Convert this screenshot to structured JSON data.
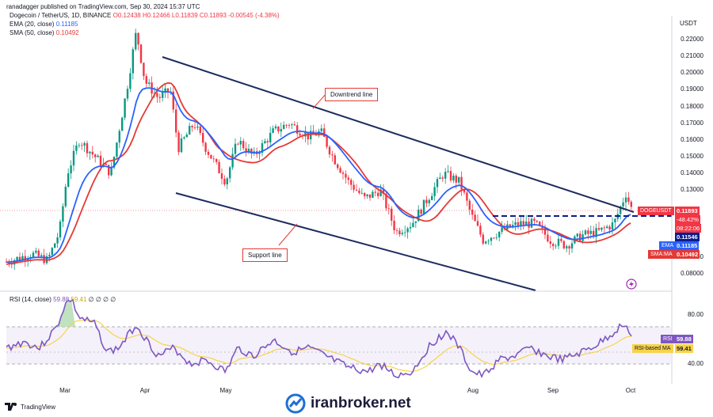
{
  "header": {
    "line1_prefix": "ranadagger published on TradingView.com, Sep 30, 2024 15:37 UTC",
    "symbol": "Dogecoin / TetherUS, 1D, BINANCE",
    "ohlc": "O0.12438 H0.12466 L0.11839 C0.11893 -0.00545 (-4.38%)",
    "ema_label": "EMA (20, close)",
    "ema_value": "0.11185",
    "sma_label": "SMA (50, close)",
    "sma_value": "0.10492"
  },
  "currency": "USDT",
  "price_ticks": [
    "0.22000",
    "0.21000",
    "0.20000",
    "0.19000",
    "0.18000",
    "0.17000",
    "0.16000",
    "0.15000",
    "0.14000",
    "0.13000",
    "0.09000",
    "0.08000"
  ],
  "tags": {
    "symbol_tag": "DOGEUSDT",
    "last_price": "0.11893",
    "change": "-48.42%",
    "countdown": "08:22:06",
    "line_price": "0.11546",
    "ema_tag": "EMA",
    "ema_value": "0.11185",
    "sma_tag": "SMA:MA",
    "sma_value": "0.10492"
  },
  "annotations": {
    "downtrend": "Downtrend line",
    "support": "Support line"
  },
  "rsi": {
    "label": "RSI (14, close)",
    "value1": "59.88",
    "value2": "59.41",
    "dots": "∅ ∅ ∅ ∅",
    "ticks": [
      "80.00",
      "40.00"
    ],
    "tag_rsi": "RSI",
    "tag_rsi_value": "59.88",
    "tag_ma": "RSI-based MA",
    "tag_ma_value": "59.41"
  },
  "x_ticks": [
    "Mar",
    "Apr",
    "May",
    "Aug",
    "Sep",
    "Oct"
  ],
  "footer": {
    "brand": "TradingView"
  },
  "watermark": "iranbroker.net",
  "colors": {
    "up": "#089981",
    "down": "#f23645",
    "ema": "#2962ff",
    "sma": "#e53935",
    "rsi": "#7e57c2",
    "rsi_ma": "#f7d34a",
    "trend": "#1e2b5e"
  }
}
